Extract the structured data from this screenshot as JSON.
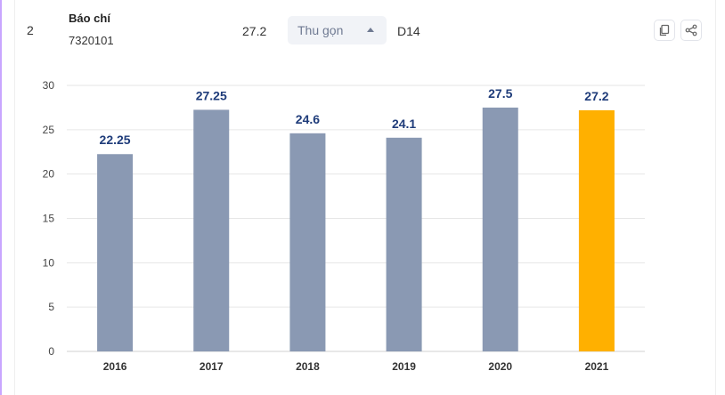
{
  "row": {
    "index": "2",
    "major_name": "Báo chí",
    "major_code": "7320101",
    "score": "27.2",
    "collapse_label": "Thu gọn",
    "subject_group": "D14"
  },
  "actions": {
    "copy_icon": "copy-icon",
    "share_icon": "share-icon"
  },
  "colors": {
    "bar_default": "#8a99b3",
    "bar_highlight": "#ffb000",
    "data_label": "#1f3c7a"
  },
  "chart_data": {
    "type": "bar",
    "categories": [
      "2016",
      "2017",
      "2018",
      "2019",
      "2020",
      "2021"
    ],
    "values": [
      22.25,
      27.25,
      24.6,
      24.1,
      27.5,
      27.2
    ],
    "data_labels": [
      "22.25",
      "27.25",
      "24.6",
      "24.1",
      "27.5",
      "27.2"
    ],
    "highlight_index": 5,
    "title": "",
    "xlabel": "",
    "ylabel": "",
    "ylim": [
      0,
      30
    ],
    "yticks": [
      "0",
      "5",
      "10",
      "15",
      "20",
      "25",
      "30"
    ],
    "grid": true,
    "legend": "none"
  }
}
